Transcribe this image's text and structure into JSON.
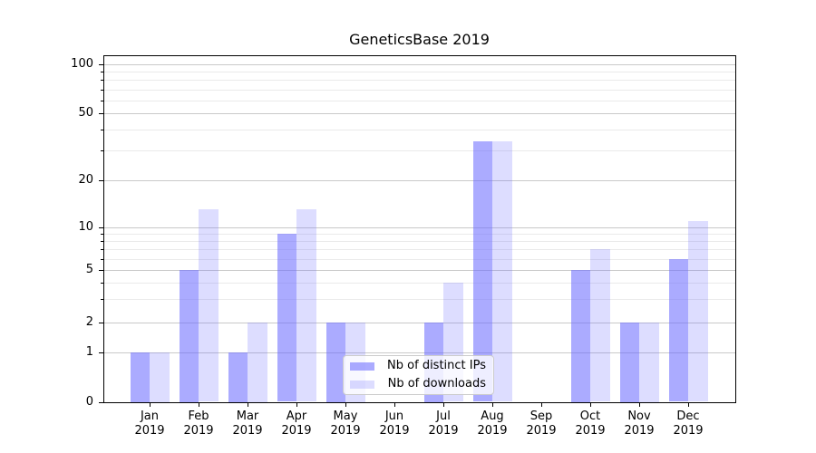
{
  "title": "GeneticsBase 2019",
  "legend": {
    "items": [
      {
        "label": "Nb of distinct IPs",
        "color": "#aaaaf7"
      },
      {
        "label": "Nb of downloads",
        "color": "#dcdcfb"
      }
    ]
  },
  "chart_data": {
    "type": "bar",
    "title": "GeneticsBase 2019",
    "categories": [
      "Jan 2019",
      "Feb 2019",
      "Mar 2019",
      "Apr 2019",
      "May 2019",
      "Jun 2019",
      "Jul 2019",
      "Aug 2019",
      "Sep 2019",
      "Oct 2019",
      "Nov 2019",
      "Dec 2019"
    ],
    "series": [
      {
        "name": "Nb of distinct IPs",
        "color": "#aaaaf7",
        "rgba": "rgba(102,102,255,0.55)",
        "values": [
          1,
          5,
          1,
          9,
          2,
          0,
          2,
          34,
          0,
          5,
          2,
          6
        ]
      },
      {
        "name": "Nb of downloads",
        "color": "#dcdcfb",
        "rgba": "rgba(102,102,255,0.22)",
        "values": [
          1,
          13,
          2,
          13,
          2,
          0,
          4,
          34,
          0,
          7,
          2,
          11
        ]
      }
    ],
    "xlabel": "",
    "ylabel": "",
    "yscale": "symlog (linear 0-1, logarithmic above 1)",
    "ylim": [
      0,
      112
    ],
    "yticks": [
      0,
      1,
      2,
      5,
      10,
      20,
      50,
      100
    ],
    "yticks_minor": [
      3,
      4,
      6,
      7,
      8,
      9,
      30,
      40,
      60,
      70,
      80,
      90
    ],
    "grid": "horizontal, major + minor",
    "legend_position": "lower center",
    "colors": {
      "grid_major": "#c9c9c9",
      "grid_minor": "#eaeaea",
      "spine": "#000000",
      "background": "#ffffff"
    }
  }
}
